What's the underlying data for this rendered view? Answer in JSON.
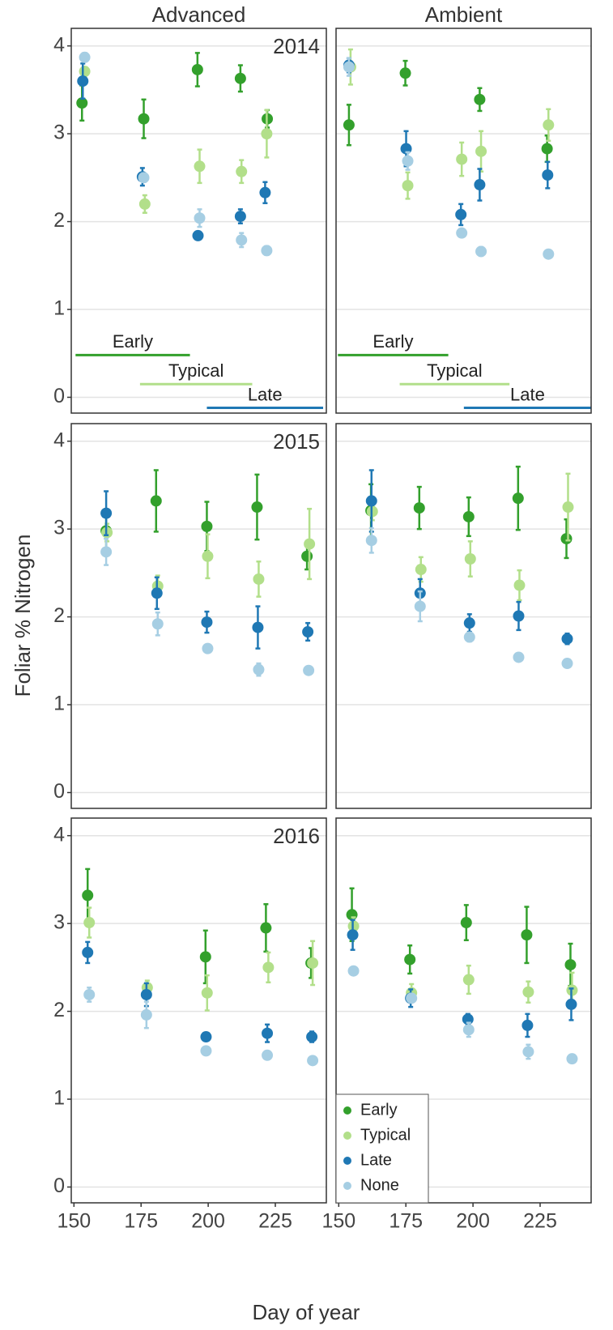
{
  "chart_data": {
    "type": "scatter",
    "xlabel": "Day of year",
    "ylabel": "Foliar % Nitrogen",
    "columns": [
      "Advanced",
      "Ambient"
    ],
    "rows": [
      "2014",
      "2015",
      "2016"
    ],
    "xlim": [
      149,
      244
    ],
    "xticks": [
      150,
      175,
      200,
      225
    ],
    "ylim": [
      -0.18,
      4.2
    ],
    "yticks": [
      0,
      1,
      2,
      3,
      4
    ],
    "grid": true,
    "legend": "bottom-left",
    "series": [
      {
        "name": "Early",
        "color": "#33a02c"
      },
      {
        "name": "Typical",
        "color": "#b2df8a"
      },
      {
        "name": "Late",
        "color": "#1f78b4"
      },
      {
        "name": "None",
        "color": "#a6cee3"
      }
    ],
    "panels": [
      {
        "data": [
          {
            "x": [
              153,
              176,
              196,
              212,
              222
            ],
            "values": [
              3.35,
              3.17,
              3.73,
              3.63,
              3.17
            ],
            "errors": [
              0.2,
              0.22,
              0.19,
              0.15,
              0.1
            ]
          },
          {
            "x": [
              154,
              176.4,
              196.8,
              212.4,
              221.8
            ],
            "values": [
              3.71,
              2.2,
              2.63,
              2.57,
              3.0
            ],
            "errors": [
              0.05,
              0.1,
              0.19,
              0.13,
              0.27
            ]
          },
          {
            "x": [
              153.3,
              175.5,
              196.2,
              212,
              221.2
            ],
            "values": [
              3.6,
              2.51,
              1.84,
              2.06,
              2.33
            ],
            "errors": [
              0.2,
              0.1,
              0.04,
              0.08,
              0.12
            ]
          },
          {
            "x": [
              154,
              176,
              196.8,
              212.4,
              221.8
            ],
            "values": [
              3.87,
              2.5,
              2.04,
              1.79,
              1.67
            ],
            "errors": [
              0.05,
              0.05,
              0.1,
              0.08,
              0.05
            ]
          }
        ],
        "phenology": [
          {
            "label": "Early",
            "start": 150.6,
            "end": 193.2,
            "level": 0.48
          },
          {
            "label": "Typical",
            "start": 174.6,
            "end": 216.4,
            "level": 0.15
          },
          {
            "label": "Late",
            "start": 199.5,
            "end": 242.8,
            "level": -0.12
          }
        ]
      },
      {
        "data": [
          {
            "x": [
              153.8,
              174.8,
              202.5,
              227.6
            ],
            "values": [
              3.1,
              3.69,
              3.39,
              2.83
            ],
            "errors": [
              0.23,
              0.14,
              0.13,
              0.15
            ]
          },
          {
            "x": [
              154.4,
              175.7,
              195.8,
              203,
              228.1
            ],
            "values": [
              3.76,
              2.41,
              2.71,
              2.8,
              3.1
            ],
            "errors": [
              0.2,
              0.15,
              0.19,
              0.23,
              0.18
            ]
          },
          {
            "x": [
              153.8,
              175.1,
              195.5,
              202.5,
              227.8
            ],
            "values": [
              3.78,
              2.83,
              2.08,
              2.42,
              2.53
            ],
            "errors": [
              0.08,
              0.2,
              0.12,
              0.18,
              0.15
            ]
          },
          {
            "x": [
              153.8,
              175.7,
              195.8,
              203,
              228.1
            ],
            "values": [
              3.76,
              2.69,
              1.87,
              1.66,
              1.63
            ],
            "errors": [
              0.1,
              0.1,
              0.03,
              0.05,
              0.03
            ]
          }
        ],
        "phenology": [
          {
            "label": "Early",
            "start": 149.7,
            "end": 190.8,
            "level": 0.48
          },
          {
            "label": "Typical",
            "start": 172.7,
            "end": 213.6,
            "level": 0.15
          },
          {
            "label": "Late",
            "start": 196.6,
            "end": 244,
            "level": -0.12
          }
        ]
      },
      {
        "data": [
          {
            "x": [
              162,
              180.6,
              199.5,
              218.2,
              236.8
            ],
            "values": [
              2.98,
              3.32,
              3.03,
              3.25,
              2.69
            ],
            "errors": [
              0.22,
              0.35,
              0.28,
              0.37,
              0.15
            ]
          },
          {
            "x": [
              162.3,
              181.2,
              199.8,
              218.8,
              237.7
            ],
            "values": [
              2.96,
              2.35,
              2.69,
              2.43,
              2.83
            ],
            "errors": [
              0.1,
              0.12,
              0.25,
              0.2,
              0.4
            ]
          },
          {
            "x": [
              162,
              180.9,
              199.5,
              218.5,
              237.1
            ],
            "values": [
              3.18,
              2.27,
              1.94,
              1.88,
              1.83
            ],
            "errors": [
              0.25,
              0.18,
              0.12,
              0.24,
              0.1
            ]
          },
          {
            "x": [
              162,
              181.2,
              199.8,
              218.8,
              237.4
            ],
            "values": [
              2.74,
              1.92,
              1.64,
              1.4,
              1.39
            ],
            "errors": [
              0.15,
              0.13,
              0.04,
              0.07,
              0.03
            ]
          }
        ]
      },
      {
        "data": [
          {
            "x": [
              162,
              180,
              198.4,
              216.8,
              234.8
            ],
            "values": [
              3.21,
              3.24,
              3.14,
              3.35,
              2.89
            ],
            "errors": [
              0.3,
              0.24,
              0.22,
              0.36,
              0.22
            ]
          },
          {
            "x": [
              162.5,
              180.6,
              199,
              217.3,
              235.4
            ],
            "values": [
              3.2,
              2.54,
              2.66,
              2.36,
              3.25
            ],
            "errors": [
              0.1,
              0.14,
              0.2,
              0.17,
              0.38
            ]
          },
          {
            "x": [
              162.2,
              180.3,
              198.7,
              217,
              235.1
            ],
            "values": [
              3.32,
              2.27,
              1.93,
              2.01,
              1.75
            ],
            "errors": [
              0.35,
              0.16,
              0.1,
              0.16,
              0.06
            ]
          },
          {
            "x": [
              162.2,
              180.3,
              198.7,
              217,
              235.1
            ],
            "values": [
              2.87,
              2.12,
              1.77,
              1.54,
              1.47
            ],
            "errors": [
              0.14,
              0.17,
              0.05,
              0.03,
              0.03
            ]
          }
        ]
      },
      {
        "data": [
          {
            "x": [
              155.1,
              199,
              221.5,
              238.3
            ],
            "values": [
              3.32,
              2.62,
              2.95,
              2.55
            ],
            "errors": [
              0.3,
              0.3,
              0.27,
              0.17
            ]
          },
          {
            "x": [
              155.7,
              177.3,
              199.6,
              222.4,
              238.9
            ],
            "values": [
              3.01,
              2.27,
              2.21,
              2.5,
              2.55
            ],
            "errors": [
              0.17,
              0.08,
              0.2,
              0.17,
              0.25
            ]
          },
          {
            "x": [
              155.1,
              177,
              199.2,
              222,
              238.6
            ],
            "values": [
              2.67,
              2.19,
              1.71,
              1.75,
              1.71
            ],
            "errors": [
              0.12,
              0.13,
              0.03,
              0.1,
              0.06
            ]
          },
          {
            "x": [
              155.7,
              177,
              199.2,
              222,
              238.9
            ],
            "values": [
              2.19,
              1.96,
              1.55,
              1.5,
              1.44
            ],
            "errors": [
              0.08,
              0.15,
              0.03,
              0.03,
              0.03
            ]
          }
        ]
      },
      {
        "data": [
          {
            "x": [
              154.9,
              176.5,
              197.5,
              220,
              236.3
            ],
            "values": [
              3.1,
              2.59,
              3.01,
              2.87,
              2.53
            ],
            "errors": [
              0.3,
              0.16,
              0.2,
              0.32,
              0.24
            ]
          },
          {
            "x": [
              155.5,
              177.1,
              198.4,
              220.6,
              236.9
            ],
            "values": [
              2.97,
              2.21,
              2.36,
              2.22,
              2.24
            ],
            "errors": [
              0.1,
              0.1,
              0.16,
              0.12,
              0.2
            ]
          },
          {
            "x": [
              155.2,
              176.8,
              198.1,
              220.3,
              236.6
            ],
            "values": [
              2.87,
              2.15,
              1.91,
              1.84,
              2.08
            ],
            "errors": [
              0.17,
              0.1,
              0.06,
              0.13,
              0.18
            ]
          },
          {
            "x": [
              155.5,
              177.1,
              198.4,
              220.6,
              236.9
            ],
            "values": [
              2.46,
              2.15,
              1.79,
              1.54,
              1.46
            ],
            "errors": [
              0.03,
              0.03,
              0.08,
              0.08,
              0.03
            ]
          }
        ]
      }
    ]
  }
}
